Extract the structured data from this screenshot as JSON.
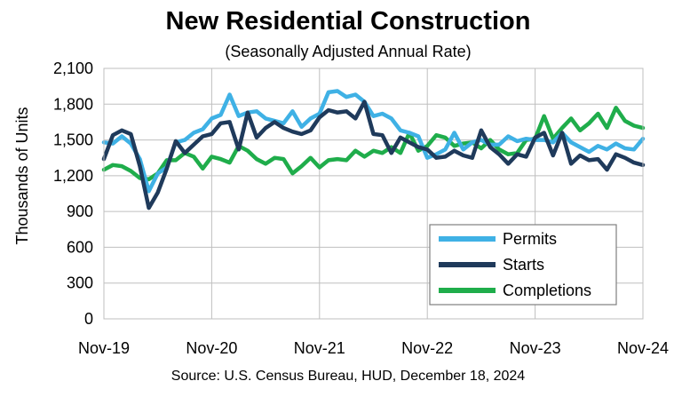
{
  "chart_data": {
    "type": "line",
    "title": "New Residential Construction",
    "subtitle": "(Seasonally Adjusted Annual Rate)",
    "ylabel": "Thousands of Units",
    "xlabel": "",
    "source": "Source:  U.S. Census Bureau, HUD, December 18, 2024",
    "ylim": [
      0,
      2100
    ],
    "yticks": [
      "0",
      "300",
      "600",
      "900",
      "1,200",
      "1,500",
      "1,800",
      "2,100"
    ],
    "ytick_values": [
      0,
      300,
      600,
      900,
      1200,
      1500,
      1800,
      2100
    ],
    "xticks": [
      "Nov-19",
      "Nov-20",
      "Nov-21",
      "Nov-22",
      "Nov-23",
      "Nov-24"
    ],
    "xtick_index": [
      0,
      12,
      24,
      36,
      48,
      60
    ],
    "x": [
      "Nov-19",
      "Dec-19",
      "Jan-20",
      "Feb-20",
      "Mar-20",
      "Apr-20",
      "May-20",
      "Jun-20",
      "Jul-20",
      "Aug-20",
      "Sep-20",
      "Oct-20",
      "Nov-20",
      "Dec-20",
      "Jan-21",
      "Feb-21",
      "Mar-21",
      "Apr-21",
      "May-21",
      "Jun-21",
      "Jul-21",
      "Aug-21",
      "Sep-21",
      "Oct-21",
      "Nov-21",
      "Dec-21",
      "Jan-22",
      "Feb-22",
      "Mar-22",
      "Apr-22",
      "May-22",
      "Jun-22",
      "Jul-22",
      "Aug-22",
      "Sep-22",
      "Oct-22",
      "Nov-22",
      "Dec-22",
      "Jan-23",
      "Feb-23",
      "Mar-23",
      "Apr-23",
      "May-23",
      "Jun-23",
      "Jul-23",
      "Aug-23",
      "Sep-23",
      "Oct-23",
      "Nov-23",
      "Dec-23",
      "Jan-24",
      "Feb-24",
      "Mar-24",
      "Apr-24",
      "May-24",
      "Jun-24",
      "Jul-24",
      "Aug-24",
      "Sep-24",
      "Oct-24",
      "Nov-24"
    ],
    "grid": true,
    "legend_position": "bottom-right",
    "series": [
      {
        "name": "Permits",
        "color": "#3fb1e5",
        "values": [
          1480,
          1470,
          1530,
          1470,
          1340,
          1070,
          1220,
          1270,
          1480,
          1500,
          1560,
          1590,
          1680,
          1710,
          1880,
          1700,
          1730,
          1740,
          1680,
          1660,
          1640,
          1740,
          1610,
          1680,
          1720,
          1900,
          1910,
          1860,
          1880,
          1820,
          1700,
          1720,
          1680,
          1580,
          1560,
          1530,
          1350,
          1380,
          1420,
          1560,
          1420,
          1480,
          1500,
          1460,
          1460,
          1530,
          1490,
          1510,
          1500,
          1500,
          1480,
          1560,
          1480,
          1440,
          1400,
          1450,
          1420,
          1470,
          1430,
          1420,
          1510
        ]
      },
      {
        "name": "Starts",
        "color": "#1f3a5b",
        "values": [
          1340,
          1540,
          1580,
          1550,
          1280,
          930,
          1060,
          1260,
          1490,
          1390,
          1460,
          1530,
          1550,
          1640,
          1650,
          1420,
          1730,
          1520,
          1600,
          1650,
          1600,
          1570,
          1550,
          1580,
          1690,
          1750,
          1730,
          1740,
          1680,
          1820,
          1550,
          1540,
          1390,
          1520,
          1480,
          1440,
          1420,
          1350,
          1360,
          1410,
          1370,
          1350,
          1580,
          1440,
          1380,
          1300,
          1380,
          1360,
          1520,
          1560,
          1370,
          1560,
          1300,
          1370,
          1330,
          1340,
          1250,
          1380,
          1350,
          1310,
          1290
        ]
      },
      {
        "name": "Completions",
        "color": "#1fad4b",
        "values": [
          1250,
          1290,
          1280,
          1240,
          1180,
          1170,
          1220,
          1330,
          1330,
          1390,
          1360,
          1260,
          1360,
          1340,
          1310,
          1450,
          1410,
          1340,
          1300,
          1350,
          1340,
          1220,
          1280,
          1350,
          1270,
          1330,
          1340,
          1330,
          1410,
          1360,
          1410,
          1390,
          1440,
          1390,
          1560,
          1410,
          1450,
          1540,
          1520,
          1450,
          1470,
          1480,
          1430,
          1500,
          1420,
          1380,
          1390,
          1500,
          1510,
          1700,
          1510,
          1600,
          1680,
          1580,
          1640,
          1720,
          1600,
          1770,
          1660,
          1620,
          1600
        ]
      }
    ]
  }
}
